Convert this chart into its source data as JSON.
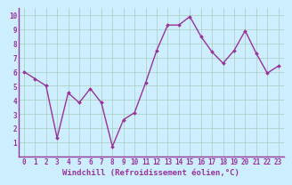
{
  "x": [
    0,
    1,
    2,
    3,
    4,
    5,
    6,
    7,
    8,
    9,
    10,
    11,
    12,
    13,
    14,
    15,
    16,
    17,
    18,
    19,
    20,
    21,
    22,
    23
  ],
  "y": [
    6.0,
    5.5,
    5.0,
    1.3,
    4.5,
    3.8,
    4.8,
    3.8,
    0.7,
    2.6,
    3.1,
    5.2,
    7.5,
    9.3,
    9.3,
    9.9,
    8.5,
    7.4,
    6.6,
    7.5,
    8.9,
    7.3,
    5.9,
    6.4
  ],
  "line_color": "#993399",
  "marker_color": "#993399",
  "bg_color": "#cceeff",
  "grid_color": "#aaccbb",
  "axis_color": "#993399",
  "tick_color": "#993399",
  "xlabel": "Windchill (Refroidissement éolien,°C)",
  "xlabel_color": "#993399",
  "xlim": [
    -0.5,
    23.5
  ],
  "ylim": [
    0,
    10.5
  ],
  "yticks": [
    1,
    2,
    3,
    4,
    5,
    6,
    7,
    8,
    9,
    10
  ],
  "xticks": [
    0,
    1,
    2,
    3,
    4,
    5,
    6,
    7,
    8,
    9,
    10,
    11,
    12,
    13,
    14,
    15,
    16,
    17,
    18,
    19,
    20,
    21,
    22,
    23
  ],
  "tick_fontsize": 5.5,
  "label_fontsize": 6.5
}
